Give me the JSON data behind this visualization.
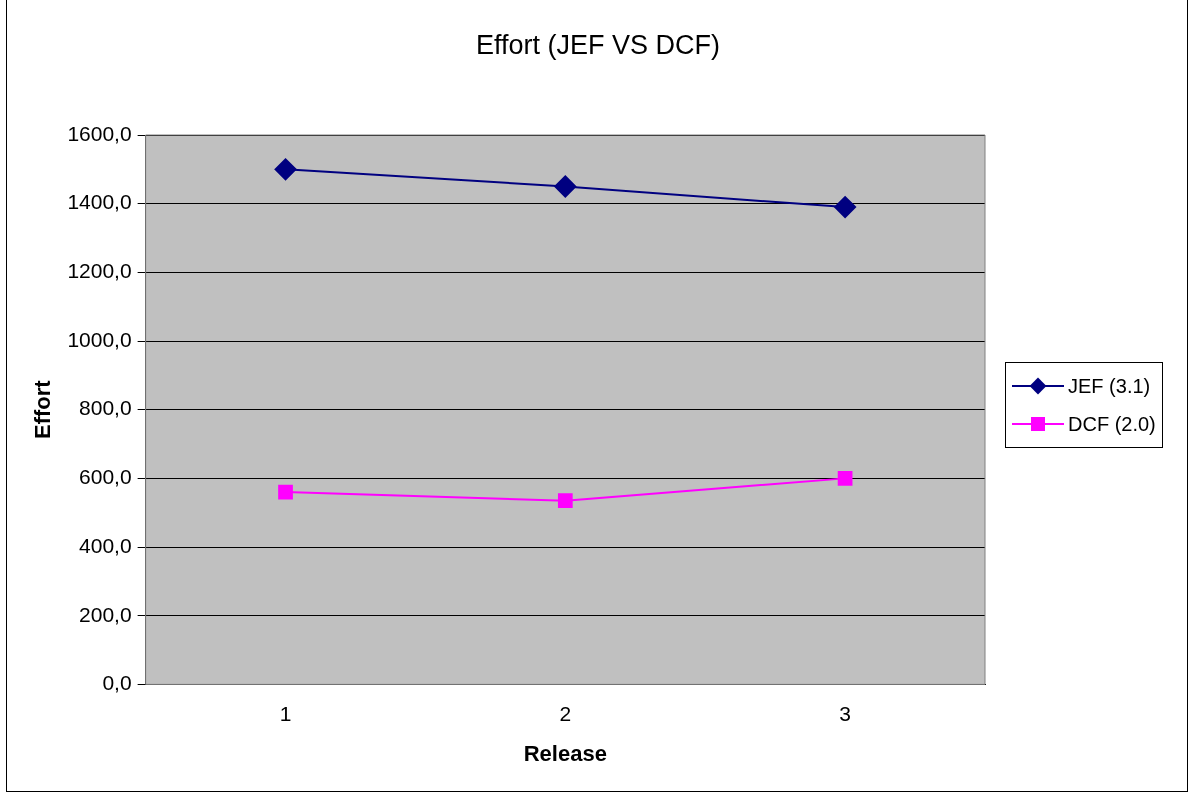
{
  "chart_data": {
    "type": "line",
    "title": "Effort (JEF VS DCF)",
    "xlabel": "Release",
    "ylabel": "Effort",
    "categories": [
      "1",
      "2",
      "3"
    ],
    "series": [
      {
        "name": "JEF (3.1)",
        "color": "#000080",
        "values": [
          1500,
          1450,
          1390
        ],
        "marker": "diamond"
      },
      {
        "name": "DCF (2.0)",
        "color": "#ff00ff",
        "values": [
          560,
          535,
          600
        ],
        "marker": "square"
      }
    ],
    "ylim": [
      0,
      1600
    ],
    "yticks": [
      {
        "value": 0,
        "label": "0,0"
      },
      {
        "value": 200,
        "label": "200,0"
      },
      {
        "value": 400,
        "label": "400,0"
      },
      {
        "value": 600,
        "label": "600,0"
      },
      {
        "value": 800,
        "label": "800,0"
      },
      {
        "value": 1000,
        "label": "1000,0"
      },
      {
        "value": 1200,
        "label": "1200,0"
      },
      {
        "value": 1400,
        "label": "1400,0"
      },
      {
        "value": 1600,
        "label": "1600,0"
      }
    ],
    "grid": "y",
    "legend": "right",
    "line_style": "solid"
  }
}
